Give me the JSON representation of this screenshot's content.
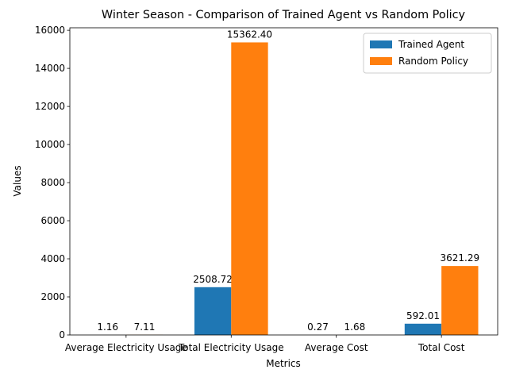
{
  "chart_data": {
    "type": "bar",
    "title": "Winter Season - Comparison of Trained Agent vs Random Policy",
    "x_label": "Metrics",
    "y_label": "Values",
    "categories": [
      "Average Electricity Usage",
      "Total Electricity Usage",
      "Average Cost",
      "Total Cost"
    ],
    "series": [
      {
        "name": "Trained Agent",
        "color": "#1f77b4",
        "values": [
          1.16,
          2508.72,
          0.27,
          592.01
        ],
        "value_labels": [
          "1.16",
          "2508.72",
          "0.27",
          "592.01"
        ]
      },
      {
        "name": "Random Policy",
        "color": "#ff7f0e",
        "values": [
          7.11,
          15362.4,
          1.68,
          3621.29
        ],
        "value_labels": [
          "7.11",
          "15362.40",
          "1.68",
          "3621.29"
        ]
      }
    ],
    "ylim": [
      0,
      16130.52
    ],
    "yticks": [
      0,
      2000,
      4000,
      6000,
      8000,
      10000,
      12000,
      14000,
      16000
    ],
    "legend": "upper right",
    "grid": false
  }
}
